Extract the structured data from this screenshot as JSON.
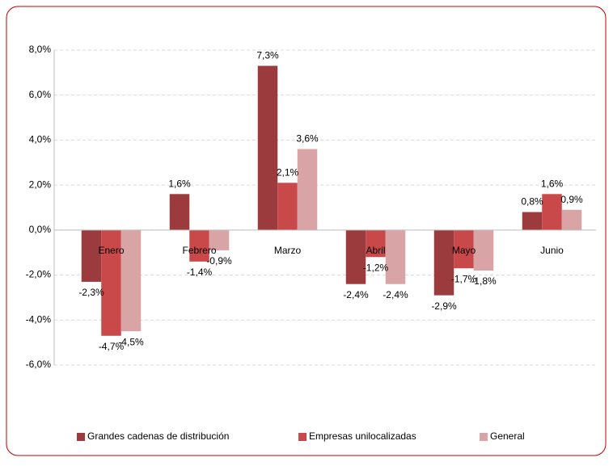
{
  "chart_data": {
    "type": "bar",
    "categories": [
      "Enero",
      "Febrero",
      "Marzo",
      "Abril",
      "Mayo",
      "Junio"
    ],
    "series": [
      {
        "name": "Grandes cadenas de distribución",
        "color": "#9b3b3d",
        "values": [
          -2.3,
          1.6,
          7.3,
          -2.4,
          -2.9,
          0.8
        ],
        "value_labels": [
          "-2,3%",
          "1,6%",
          "7,3%",
          "-2,4%",
          "-2,9%",
          "0,8%"
        ]
      },
      {
        "name": "Empresas unilocalizadas",
        "color": "#c9494b",
        "values": [
          -4.7,
          -1.4,
          2.1,
          -1.2,
          -1.7,
          1.6
        ],
        "value_labels": [
          "-4,7%",
          "-1,4%",
          "2,1%",
          "-1,2%",
          "-1,7%",
          "1,6%"
        ]
      },
      {
        "name": "General",
        "color": "#d9a4a6",
        "values": [
          -4.5,
          -0.9,
          3.6,
          -2.4,
          -1.8,
          0.9
        ],
        "value_labels": [
          "-4,5%",
          "-0,9%",
          "3,6%",
          "-2,4%",
          "-1,8%",
          "0,9%"
        ]
      }
    ],
    "ylim": [
      -6,
      8
    ],
    "yticks": [
      {
        "value": -6,
        "label": "-6,0%"
      },
      {
        "value": -4,
        "label": "-4,0%"
      },
      {
        "value": -2,
        "label": "-2,0%"
      },
      {
        "value": 0,
        "label": "0,0%"
      },
      {
        "value": 2,
        "label": "2,0%"
      },
      {
        "value": 4,
        "label": "4,0%"
      },
      {
        "value": 6,
        "label": "6,0%"
      },
      {
        "value": 8,
        "label": "8,0%"
      }
    ],
    "grid": true,
    "legend": "bottom"
  }
}
